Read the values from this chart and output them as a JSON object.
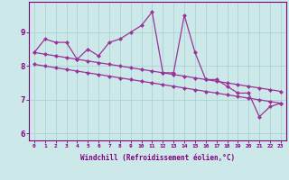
{
  "x": [
    0,
    1,
    2,
    3,
    4,
    5,
    6,
    7,
    8,
    9,
    10,
    11,
    12,
    13,
    14,
    15,
    16,
    17,
    18,
    19,
    20,
    21,
    22,
    23
  ],
  "line_jagged": [
    8.4,
    8.8,
    8.7,
    8.7,
    8.2,
    8.5,
    8.3,
    8.7,
    8.8,
    9.0,
    9.2,
    9.6,
    7.8,
    7.8,
    9.5,
    8.4,
    7.6,
    7.6,
    7.4,
    7.2,
    7.2,
    6.5,
    6.8,
    6.9
  ],
  "line_upper": [
    8.4,
    8.35,
    8.3,
    8.25,
    8.2,
    8.15,
    8.1,
    8.05,
    8.0,
    7.95,
    7.9,
    7.85,
    7.8,
    7.75,
    7.7,
    7.65,
    7.6,
    7.55,
    7.5,
    7.45,
    7.4,
    7.35,
    7.3,
    7.25
  ],
  "line_lower": [
    8.05,
    8.0,
    7.95,
    7.9,
    7.85,
    7.8,
    7.75,
    7.7,
    7.65,
    7.6,
    7.55,
    7.5,
    7.45,
    7.4,
    7.35,
    7.3,
    7.25,
    7.2,
    7.15,
    7.1,
    7.05,
    7.0,
    6.95,
    6.9
  ],
  "line_color": "#993399",
  "bg_color": "#cce8e8",
  "grid_color": "#aad4d4",
  "axis_color": "#800080",
  "tick_color": "#800080",
  "xlabel": "Windchill (Refroidissement éolien,°C)",
  "ylim": [
    5.8,
    9.9
  ],
  "xlim": [
    -0.5,
    23.5
  ],
  "yticks": [
    6,
    7,
    8,
    9
  ],
  "xticks": [
    0,
    1,
    2,
    3,
    4,
    5,
    6,
    7,
    8,
    9,
    10,
    11,
    12,
    13,
    14,
    15,
    16,
    17,
    18,
    19,
    20,
    21,
    22,
    23
  ],
  "marker": "D",
  "markersize": 2.5,
  "linewidth": 0.9
}
